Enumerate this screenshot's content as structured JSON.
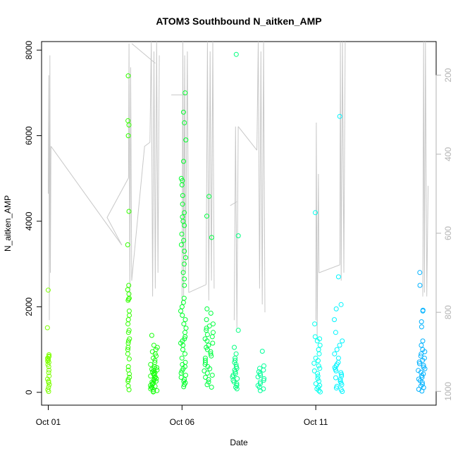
{
  "chart_data": {
    "type": "scatter",
    "title": "ATOM3 Southbound N_aitken_AMP",
    "xlabel": "Date",
    "ylabel": "N_aitken_AMP",
    "x_ticks": [
      {
        "day": 1,
        "label": "Oct 01"
      },
      {
        "day": 6,
        "label": "Oct 06"
      },
      {
        "day": 11,
        "label": "Oct 11"
      }
    ],
    "xlim": [
      0.75,
      15.5
    ],
    "ylim": [
      -300,
      8200
    ],
    "y_ticks": [
      0,
      2000,
      4000,
      6000,
      8000
    ],
    "y2_ticks": [
      200,
      400,
      600,
      800,
      1000
    ],
    "y2_reversed": true,
    "y2lim": [
      1035,
      115
    ],
    "color_scale": [
      "#7cfc00",
      "#00ff00",
      "#00ff7f",
      "#00ffff",
      "#1e90ff"
    ],
    "clusters": [
      {
        "day": 1.0,
        "spread": 0.04,
        "color": "#7cff00",
        "values": [
          20,
          60,
          120,
          180,
          230,
          260,
          310,
          380,
          460,
          520,
          600,
          650,
          700,
          730,
          760,
          780,
          800,
          830,
          850,
          880,
          1510,
          2390
        ]
      },
      {
        "day": 4.0,
        "spread": 0.04,
        "color": "#33ff00",
        "values": [
          60,
          150,
          260,
          300,
          350,
          430,
          520,
          600,
          780,
          900,
          1000,
          1050,
          1150,
          1200,
          1250,
          1400,
          1450,
          1600,
          1700,
          1800,
          1900,
          2150,
          2180,
          2200,
          2300,
          2400,
          2500,
          3450,
          4230,
          6000,
          6250,
          6350,
          7400
        ]
      },
      {
        "day": 4.95,
        "spread": 0.13,
        "color": "#1aff10",
        "values": [
          10,
          20,
          40,
          60,
          80,
          100,
          120,
          140,
          160,
          180,
          200,
          220,
          240,
          260,
          280,
          300,
          320,
          340,
          360,
          380,
          400,
          420,
          440,
          460,
          480,
          500,
          520,
          540,
          560,
          580,
          600,
          650,
          700,
          750,
          800,
          850,
          900,
          950,
          1000,
          1050,
          1100,
          1330
        ]
      },
      {
        "day": 6.05,
        "spread": 0.1,
        "color": "#00ff2a",
        "values": [
          130,
          180,
          220,
          260,
          300,
          350,
          400,
          450,
          500,
          550,
          600,
          650,
          700,
          800,
          900,
          1000,
          1100,
          1150,
          1200,
          1250,
          1300,
          1400,
          1500,
          1600,
          1700,
          1800,
          1900,
          2000,
          2100,
          2200,
          2500,
          2650,
          2800,
          3000,
          3150,
          3300,
          3450,
          3550,
          3700,
          3900,
          4000,
          4100,
          4200,
          4400,
          4600,
          4850,
          4950,
          5000,
          5400,
          5900,
          6300,
          6550,
          7000
        ]
      },
      {
        "day": 7.0,
        "spread": 0.17,
        "color": "#00ff40",
        "values": [
          120,
          180,
          240,
          300,
          350,
          400,
          450,
          500,
          550,
          600,
          650,
          700,
          750,
          800,
          850,
          900,
          950,
          1000,
          1050,
          1100,
          1150,
          1200,
          1250,
          1300,
          1350,
          1400,
          1450,
          1500,
          1550,
          1600,
          1700,
          1850,
          1950,
          3620,
          4120,
          4580
        ]
      },
      {
        "day": 8.0,
        "spread": 0.12,
        "color": "#00ff7f",
        "values": [
          80,
          120,
          160,
          200,
          240,
          280,
          320,
          360,
          400,
          440,
          480,
          520,
          560,
          600,
          650,
          700,
          750,
          800,
          900,
          1050,
          1450,
          3660,
          7900
        ]
      },
      {
        "day": 8.95,
        "spread": 0.12,
        "color": "#00ff99",
        "values": [
          40,
          80,
          120,
          160,
          200,
          240,
          280,
          320,
          360,
          400,
          440,
          480,
          520,
          560,
          620,
          960
        ]
      },
      {
        "day": 11.05,
        "spread": 0.12,
        "color": "#00ffee",
        "values": [
          10,
          40,
          80,
          120,
          160,
          200,
          260,
          320,
          380,
          440,
          500,
          560,
          620,
          680,
          740,
          800,
          900,
          1000,
          1100,
          1200,
          1250,
          1300,
          1600,
          4200
        ]
      },
      {
        "day": 11.85,
        "spread": 0.17,
        "color": "#00f5ff",
        "values": [
          20,
          60,
          100,
          140,
          180,
          220,
          260,
          300,
          340,
          380,
          420,
          460,
          500,
          540,
          580,
          620,
          660,
          700,
          800,
          900,
          1000,
          1100,
          1200,
          1400,
          1700,
          1950,
          2050,
          2700,
          6450
        ]
      },
      {
        "day": 14.95,
        "spread": 0.13,
        "color": "#00b2ff",
        "values": [
          30,
          70,
          110,
          150,
          190,
          230,
          270,
          310,
          350,
          390,
          430,
          470,
          510,
          550,
          590,
          630,
          670,
          710,
          750,
          800,
          850,
          900,
          950,
          1000,
          1100,
          1200,
          1530,
          1650,
          1900,
          1920,
          2500,
          2800
        ]
      }
    ],
    "altitude_trace": {
      "color": "#c8c8c8",
      "lines": [
        [
          [
            1.0,
            500
          ],
          [
            1.02,
            200
          ],
          [
            1.04,
            820
          ],
          [
            1.06,
            150
          ],
          [
            1.08,
            700
          ],
          [
            1.1,
            380
          ]
        ],
        [
          [
            1.1,
            380
          ],
          [
            3.75,
            630
          ]
        ],
        [
          [
            3.75,
            630
          ],
          [
            3.2,
            560
          ],
          [
            4.0,
            460
          ]
        ],
        [
          [
            4.0,
            460
          ],
          [
            4.02,
            120
          ],
          [
            4.05,
            760
          ],
          [
            4.08,
            180
          ],
          [
            4.12,
            720
          ]
        ],
        [
          [
            4.12,
            720
          ],
          [
            4.6,
            380
          ],
          [
            4.8,
            370
          ]
        ],
        [
          [
            4.8,
            370
          ],
          [
            4.85,
            115
          ],
          [
            4.9,
            760
          ],
          [
            4.95,
            140
          ],
          [
            5.0,
            740
          ],
          [
            5.05,
            115
          ],
          [
            5.1,
            700
          ],
          [
            5.15,
            150
          ]
        ],
        [
          [
            4.12,
            120
          ],
          [
            5.0,
            170
          ]
        ],
        [
          [
            6.0,
            780
          ],
          [
            6.03,
            115
          ],
          [
            6.06,
            760
          ],
          [
            6.1,
            150
          ],
          [
            6.13,
            700
          ],
          [
            6.2,
            140
          ],
          [
            6.25,
            750
          ]
        ],
        [
          [
            6.25,
            750
          ],
          [
            6.9,
            730
          ]
        ],
        [
          [
            6.9,
            730
          ],
          [
            6.95,
            115
          ],
          [
            7.0,
            770
          ],
          [
            7.05,
            140
          ],
          [
            7.1,
            720
          ],
          [
            7.15,
            115
          ],
          [
            7.2,
            740
          ]
        ],
        [
          [
            5.6,
            250
          ],
          [
            6.2,
            250
          ]
        ],
        [
          [
            7.95,
            820
          ],
          [
            8.0,
            330
          ],
          [
            8.05,
            840
          ],
          [
            8.1,
            330
          ]
        ],
        [
          [
            8.1,
            330
          ],
          [
            8.8,
            390
          ]
        ],
        [
          [
            8.8,
            390
          ],
          [
            8.85,
            115
          ],
          [
            8.9,
            740
          ],
          [
            8.95,
            140
          ],
          [
            9.0,
            780
          ],
          [
            9.05,
            115
          ],
          [
            9.1,
            800
          ]
        ],
        [
          [
            7.8,
            530
          ],
          [
            8.05,
            520
          ]
        ],
        [
          [
            11.0,
            820
          ],
          [
            11.02,
            320
          ],
          [
            11.05,
            860
          ],
          [
            11.1,
            450
          ],
          [
            11.12,
            700
          ]
        ],
        [
          [
            11.12,
            700
          ],
          [
            11.9,
            680
          ]
        ],
        [
          [
            11.9,
            680
          ],
          [
            11.92,
            115
          ],
          [
            11.95,
            720
          ],
          [
            12.0,
            115
          ],
          [
            12.05,
            700
          ],
          [
            12.1,
            115
          ]
        ],
        [
          [
            15.0,
            760
          ],
          [
            15.03,
            115
          ],
          [
            15.06,
            750
          ],
          [
            15.1,
            115
          ],
          [
            15.15,
            760
          ],
          [
            15.2,
            480
          ]
        ]
      ]
    }
  }
}
